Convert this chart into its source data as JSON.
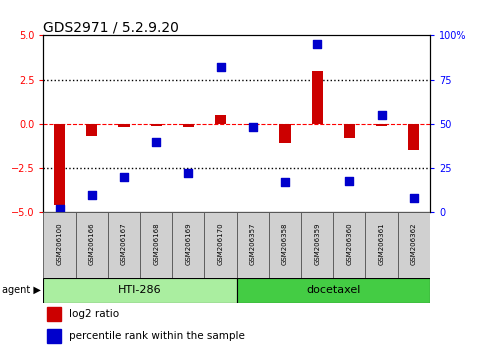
{
  "title": "GDS2971 / 5.2.9.20",
  "samples": [
    "GSM206100",
    "GSM206166",
    "GSM206167",
    "GSM206168",
    "GSM206169",
    "GSM206170",
    "GSM206357",
    "GSM206358",
    "GSM206359",
    "GSM206360",
    "GSM206361",
    "GSM206362"
  ],
  "log2_ratio": [
    -4.6,
    -0.7,
    -0.15,
    -0.1,
    -0.15,
    0.5,
    -0.05,
    -1.1,
    3.0,
    -0.8,
    -0.1,
    -1.5
  ],
  "pct_rank": [
    2,
    10,
    20,
    40,
    22,
    82,
    48,
    17,
    95,
    18,
    55,
    8
  ],
  "ylim_left": [
    -5,
    5
  ],
  "ylim_right": [
    0,
    100
  ],
  "yticks_left": [
    -5,
    -2.5,
    0,
    2.5,
    5
  ],
  "yticks_right": [
    0,
    25,
    50,
    75,
    100
  ],
  "bar_color": "#cc0000",
  "dot_color": "#0000cc",
  "agent_groups": [
    {
      "label": "HTI-286",
      "start": 0,
      "end": 6,
      "color": "#aaeea0"
    },
    {
      "label": "docetaxel",
      "start": 6,
      "end": 12,
      "color": "#44cc44"
    }
  ],
  "legend_items": [
    {
      "label": "log2 ratio",
      "color": "#cc0000"
    },
    {
      "label": "percentile rank within the sample",
      "color": "#0000cc"
    }
  ],
  "bg_color": "#ffffff",
  "bar_width": 0.35,
  "dot_size": 28,
  "title_fontsize": 10,
  "tick_fontsize": 7,
  "sample_fontsize": 5,
  "legend_fontsize": 7.5,
  "agent_fontsize": 8
}
